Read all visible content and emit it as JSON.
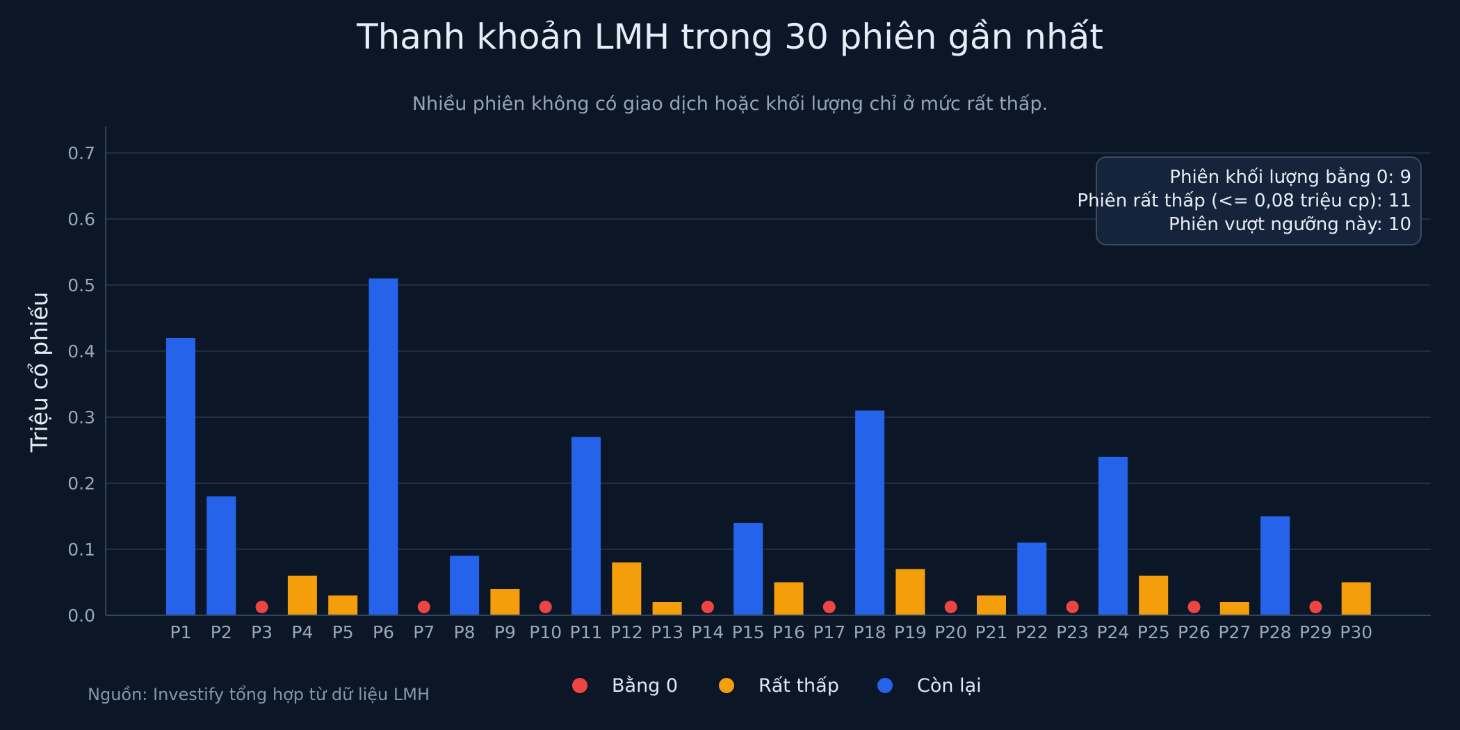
{
  "chart_data": {
    "type": "bar",
    "title": "Thanh khoản LMH trong 30 phiên gần nhất",
    "subtitle": "Nhiều phiên không có giao dịch hoặc khối lượng chỉ ở mức rất thấp.",
    "ylabel": "Triệu cổ phiếu",
    "xlabel": "",
    "ylim": [
      0,
      0.74
    ],
    "yticks": [
      {
        "value": 0,
        "label": "0.0"
      },
      {
        "value": 0.1,
        "label": "0.1"
      },
      {
        "value": 0.2,
        "label": "0.2"
      },
      {
        "value": 0.3,
        "label": "0.3"
      },
      {
        "value": 0.4,
        "label": "0.4"
      },
      {
        "value": 0.5,
        "label": "0.5"
      },
      {
        "value": 0.6,
        "label": "0.6"
      },
      {
        "value": 0.7,
        "label": "0.7"
      }
    ],
    "categories": [
      "P1",
      "P2",
      "P3",
      "P4",
      "P5",
      "P6",
      "P7",
      "P8",
      "P9",
      "P10",
      "P11",
      "P12",
      "P13",
      "P14",
      "P15",
      "P16",
      "P17",
      "P18",
      "P19",
      "P20",
      "P21",
      "P22",
      "P23",
      "P24",
      "P25",
      "P26",
      "P27",
      "P28",
      "P29",
      "P30"
    ],
    "values": [
      0.42,
      0.18,
      0,
      0.06,
      0.03,
      0.51,
      0,
      0.09,
      0.04,
      0,
      0.27,
      0.08,
      0.02,
      0,
      0.14,
      0.05,
      0,
      0.31,
      0.07,
      0,
      0.03,
      0.11,
      0,
      0.24,
      0.06,
      0,
      0.02,
      0.15,
      0,
      0.05
    ],
    "groups": {
      "zero": {
        "label": "Bằng 0",
        "color": "#ef4444"
      },
      "low": {
        "label": "Rất thấp",
        "color": "#f59e0b"
      },
      "rest": {
        "label": "Còn lại",
        "color": "#2563eb"
      }
    },
    "low_threshold": 0.08,
    "grid": true,
    "legend_position": "bottom-center",
    "annotation": [
      "Phiên khối lượng bằng 0: 9",
      "Phiên rất thấp (<= 0,08 triệu cp): 11",
      "Phiên vượt ngưỡng này: 10"
    ],
    "source": "Nguồn: Investify tổng hợp từ dữ liệu LMH"
  }
}
